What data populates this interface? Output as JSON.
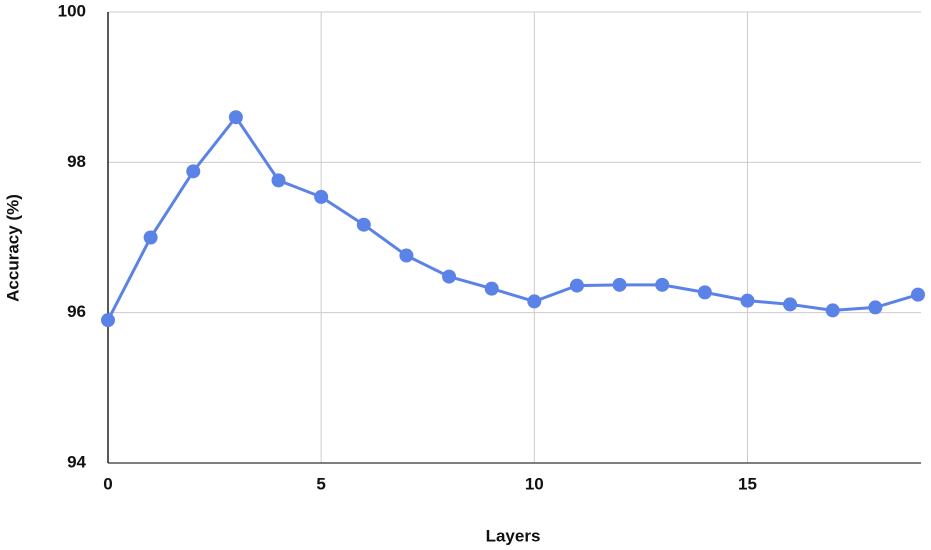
{
  "chart_data": {
    "type": "line",
    "x_label": "Layers",
    "y_label": "Accuracy (%)",
    "x": [
      0,
      1,
      2,
      3,
      4,
      5,
      6,
      7,
      8,
      9,
      10,
      11,
      12,
      13,
      14,
      15,
      16,
      17,
      18,
      19
    ],
    "series": [
      {
        "color": "#5b82e6",
        "values": [
          95.9,
          97.0,
          97.88,
          98.6,
          97.76,
          97.54,
          97.17,
          96.76,
          96.48,
          96.32,
          96.15,
          96.36,
          96.37,
          96.37,
          96.27,
          96.16,
          96.11,
          96.03,
          96.07,
          96.24
        ]
      }
    ],
    "xlim": [
      0,
      19
    ],
    "xticks": [
      0,
      5,
      10,
      15
    ],
    "ylim": [
      94,
      100
    ],
    "yticks": [
      94,
      96,
      98,
      100
    ],
    "grid": true
  }
}
